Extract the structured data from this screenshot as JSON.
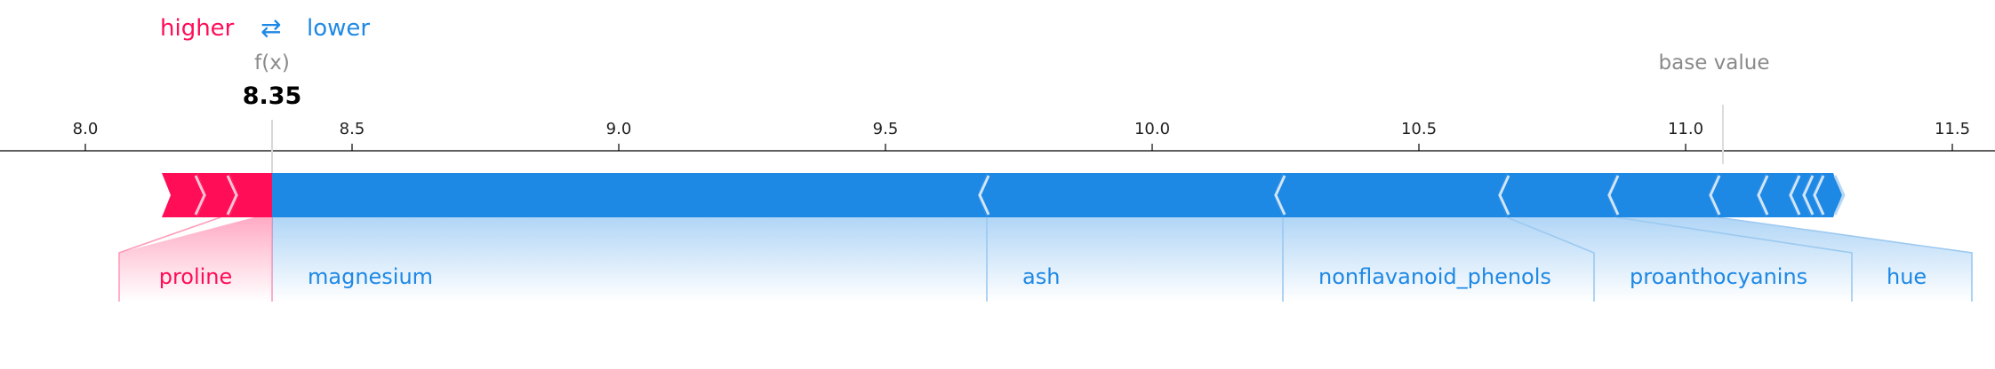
{
  "legend": {
    "higher": "higher",
    "arrow": "⇄",
    "lower": "lower"
  },
  "fx_label": "f(x)",
  "fx_value": "8.35",
  "base_value_label": "base value",
  "colors": {
    "higher": "#ff0d57",
    "lower": "#1e88e5",
    "axis": "#000000",
    "muted": "#8a8a8a",
    "lower_light": "#9cc9f0",
    "higher_light": "#ff9cb9"
  },
  "chart_data": {
    "type": "force",
    "xlim": [
      7.84,
      11.58
    ],
    "ticks": [
      8.0,
      8.5,
      9.0,
      9.5,
      10.0,
      10.5,
      11.0,
      11.5
    ],
    "tick_labels": [
      "8.0",
      "8.5",
      "9.0",
      "9.5",
      "10.0",
      "10.5",
      "11.0",
      "11.5"
    ],
    "output_value": 8.35,
    "base_value": 11.07,
    "higher": {
      "label": "proline",
      "segments": [
        [
          8.15,
          8.21
        ],
        [
          8.21,
          8.27
        ],
        [
          8.27,
          8.35
        ]
      ]
    },
    "lower_segments": [
      [
        8.35,
        9.69
      ],
      [
        9.69,
        10.245
      ],
      [
        10.245,
        10.665
      ],
      [
        10.665,
        10.87
      ],
      [
        10.87,
        11.06
      ],
      [
        11.06,
        11.15
      ],
      [
        11.15,
        11.21
      ],
      [
        11.21,
        11.235
      ],
      [
        11.235,
        11.255
      ],
      [
        11.255,
        11.27
      ]
    ],
    "lower_labels": [
      {
        "label": "magnesium",
        "seg": 0
      },
      {
        "label": "ash",
        "seg": 1
      },
      {
        "label": "nonflavanoid_phenols",
        "seg": 2
      },
      {
        "label": "proanthocyanins",
        "seg": 3
      },
      {
        "label": "hue",
        "seg": 4
      }
    ]
  }
}
